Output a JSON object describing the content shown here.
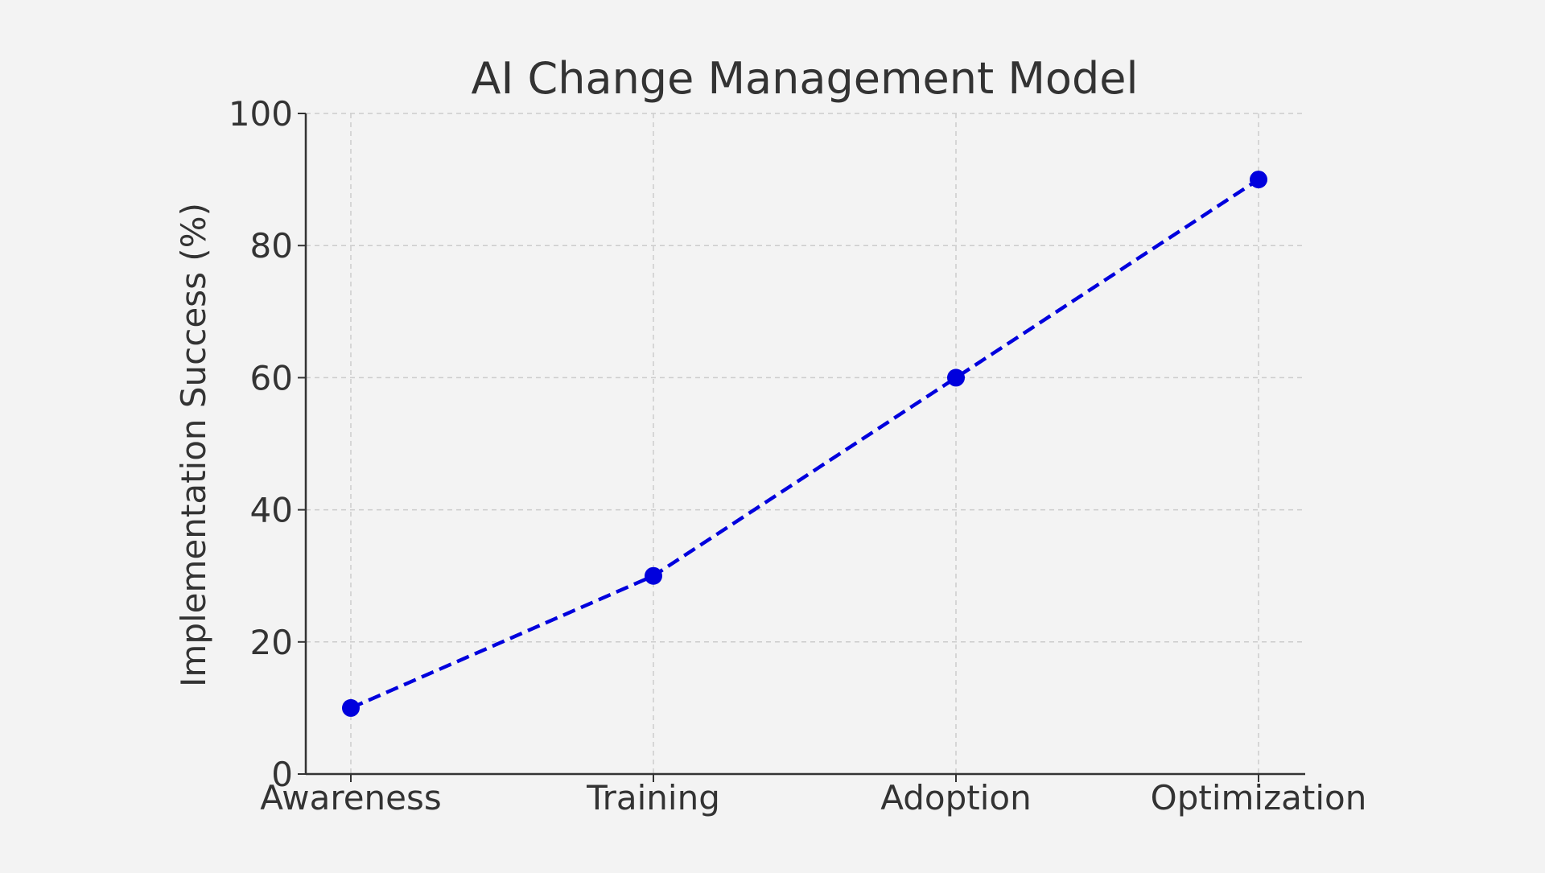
{
  "chart_data": {
    "type": "line",
    "title": "AI Change Management Model",
    "xlabel": "",
    "ylabel": "Implementation Success (%)",
    "categories": [
      "Awareness",
      "Training",
      "Adoption",
      "Optimization"
    ],
    "series": [
      {
        "values": [
          10,
          30,
          60,
          90
        ],
        "color": "#0000dd",
        "line_style": "dashed",
        "marker": "circle"
      }
    ],
    "ylim": [
      0,
      100
    ],
    "yticks": [
      0,
      20,
      40,
      60,
      80,
      100
    ],
    "grid": true,
    "legend": "none"
  },
  "colors": {
    "background": "#f3f3f3",
    "text": "#333333",
    "axis": "#333333",
    "grid": "#cccccc"
  }
}
